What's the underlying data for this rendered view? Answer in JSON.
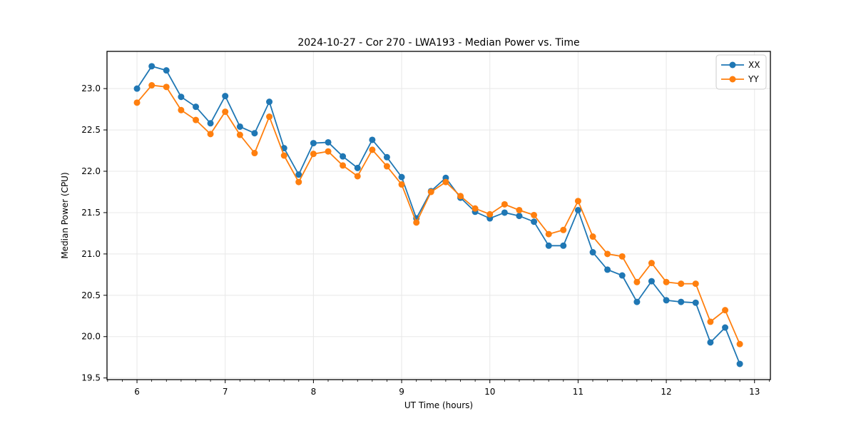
{
  "chart_data": {
    "type": "line",
    "title": "2024-10-27 - Cor 270 - LWA193 - Median Power vs. Time",
    "grid": true,
    "legend_position": "top-right",
    "colors": {
      "xx": "#1f77b4",
      "yy": "#ff7f0e",
      "grid": "#e8e8e8",
      "spine": "#000000"
    },
    "x_axis": {
      "label": "UT Time (hours)",
      "lim": [
        5.66,
        13.18
      ],
      "major_ticks": [
        6,
        7,
        8,
        9,
        10,
        11,
        12,
        13
      ],
      "tick_labels": [
        "6",
        "7",
        "8",
        "9",
        "10",
        "11",
        "12",
        "13"
      ],
      "minor_ticks_per_hour": 6
    },
    "y_axis": {
      "label": "Median Power (CPU)",
      "lim": [
        19.48,
        23.45
      ],
      "ticks": [
        19.5,
        20.0,
        20.5,
        21.0,
        21.5,
        22.0,
        22.5,
        23.0
      ],
      "tick_labels": [
        "19.5",
        "20.0",
        "20.5",
        "21.0",
        "21.5",
        "22.0",
        "22.5",
        "23.0"
      ]
    },
    "x": [
      6.0,
      6.167,
      6.333,
      6.5,
      6.667,
      6.833,
      7.0,
      7.167,
      7.333,
      7.5,
      7.667,
      7.833,
      8.0,
      8.167,
      8.333,
      8.5,
      8.667,
      8.833,
      9.0,
      9.167,
      9.333,
      9.5,
      9.667,
      9.833,
      10.0,
      10.167,
      10.333,
      10.5,
      10.667,
      10.833,
      11.0,
      11.167,
      11.333,
      11.5,
      11.667,
      11.833,
      12.0,
      12.167,
      12.333,
      12.5,
      12.667,
      12.833
    ],
    "series": [
      {
        "name": "XX",
        "color": "#1f77b4",
        "values": [
          23.0,
          23.27,
          23.22,
          22.9,
          22.78,
          22.58,
          22.91,
          22.54,
          22.46,
          22.84,
          22.28,
          21.96,
          22.34,
          22.35,
          22.18,
          22.04,
          22.38,
          22.17,
          21.93,
          21.43,
          21.76,
          21.92,
          21.68,
          21.51,
          21.43,
          21.5,
          21.46,
          21.39,
          21.1,
          21.1,
          21.53,
          21.02,
          20.81,
          20.74,
          20.42,
          20.67,
          20.44,
          20.42,
          20.41,
          19.93,
          20.11,
          19.67
        ]
      },
      {
        "name": "YY",
        "color": "#ff7f0e",
        "values": [
          22.83,
          23.04,
          23.02,
          22.74,
          22.62,
          22.45,
          22.72,
          22.44,
          22.22,
          22.66,
          22.19,
          21.87,
          22.21,
          22.24,
          22.07,
          21.94,
          22.26,
          22.06,
          21.84,
          21.38,
          21.75,
          21.87,
          21.7,
          21.55,
          21.48,
          21.6,
          21.53,
          21.47,
          21.24,
          21.29,
          21.64,
          21.21,
          21.0,
          20.97,
          20.66,
          20.89,
          20.66,
          20.64,
          20.64,
          20.18,
          20.32,
          19.91
        ]
      }
    ]
  }
}
